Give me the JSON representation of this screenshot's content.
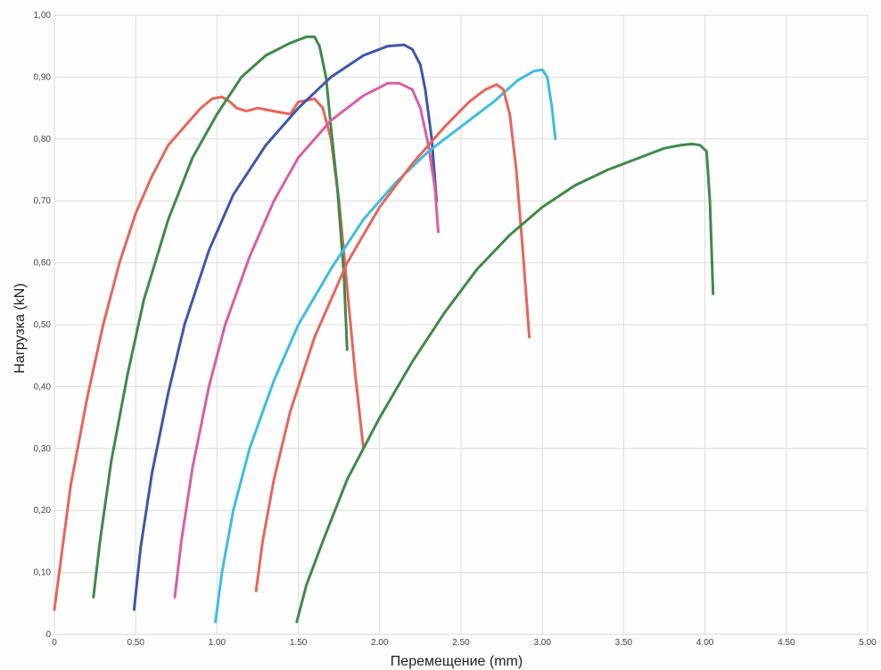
{
  "chart_data": {
    "type": "line",
    "title": "",
    "xlabel": "Перемещение (mm)",
    "ylabel": "Нагрузка (kN)",
    "xlim": [
      0,
      5
    ],
    "ylim": [
      0,
      1
    ],
    "grid": true,
    "legend": "none",
    "x_ticks": [
      "0",
      "0.50",
      "1.00",
      "1.50",
      "2.00",
      "2.50",
      "3.00",
      "3.50",
      "4.00",
      "4.50",
      "5.00"
    ],
    "y_ticks": [
      "0",
      "0,10",
      "0,20",
      "0,30",
      "0,40",
      "0,50",
      "0,60",
      "0,70",
      "0,80",
      "0,90",
      "1,00"
    ],
    "series": [
      {
        "color": "#e8655a",
        "x": [
          0.0,
          0.05,
          0.1,
          0.2,
          0.3,
          0.4,
          0.5,
          0.6,
          0.7,
          0.8,
          0.9,
          0.97,
          1.03,
          1.08,
          1.12,
          1.18,
          1.25,
          1.35,
          1.45,
          1.5,
          1.6,
          1.65,
          1.7,
          1.75,
          1.8,
          1.85,
          1.9
        ],
        "y": [
          0.04,
          0.14,
          0.24,
          0.38,
          0.5,
          0.6,
          0.68,
          0.74,
          0.79,
          0.82,
          0.85,
          0.865,
          0.868,
          0.86,
          0.85,
          0.845,
          0.85,
          0.845,
          0.84,
          0.86,
          0.865,
          0.85,
          0.8,
          0.7,
          0.56,
          0.42,
          0.3
        ]
      },
      {
        "color": "#3e8a4a",
        "x": [
          0.24,
          0.28,
          0.35,
          0.45,
          0.55,
          0.7,
          0.85,
          1.0,
          1.15,
          1.3,
          1.45,
          1.55,
          1.6,
          1.63,
          1.67,
          1.7,
          1.74,
          1.78,
          1.8
        ],
        "y": [
          0.06,
          0.15,
          0.28,
          0.42,
          0.54,
          0.67,
          0.77,
          0.84,
          0.9,
          0.935,
          0.955,
          0.965,
          0.965,
          0.95,
          0.9,
          0.82,
          0.72,
          0.58,
          0.46
        ]
      },
      {
        "color": "#3f56ad",
        "x": [
          0.49,
          0.53,
          0.6,
          0.7,
          0.8,
          0.95,
          1.1,
          1.3,
          1.5,
          1.7,
          1.9,
          2.05,
          2.15,
          2.2,
          2.25,
          2.28,
          2.32,
          2.35
        ],
        "y": [
          0.04,
          0.14,
          0.26,
          0.39,
          0.5,
          0.62,
          0.71,
          0.79,
          0.85,
          0.9,
          0.935,
          0.95,
          0.952,
          0.945,
          0.92,
          0.88,
          0.8,
          0.7
        ]
      },
      {
        "color": "#d85fa4",
        "x": [
          0.74,
          0.78,
          0.85,
          0.95,
          1.05,
          1.2,
          1.35,
          1.5,
          1.7,
          1.9,
          2.05,
          2.12,
          2.2,
          2.25,
          2.3,
          2.34,
          2.36
        ],
        "y": [
          0.06,
          0.15,
          0.27,
          0.4,
          0.5,
          0.61,
          0.7,
          0.77,
          0.83,
          0.87,
          0.89,
          0.89,
          0.88,
          0.85,
          0.79,
          0.72,
          0.65
        ]
      },
      {
        "color": "#3cbde4",
        "x": [
          0.99,
          1.03,
          1.1,
          1.2,
          1.35,
          1.5,
          1.7,
          1.9,
          2.1,
          2.3,
          2.5,
          2.7,
          2.85,
          2.95,
          3.0,
          3.03,
          3.06,
          3.08
        ],
        "y": [
          0.02,
          0.1,
          0.2,
          0.3,
          0.41,
          0.5,
          0.59,
          0.67,
          0.73,
          0.78,
          0.82,
          0.86,
          0.895,
          0.91,
          0.912,
          0.9,
          0.85,
          0.8
        ]
      },
      {
        "color": "#e8655a",
        "x": [
          1.24,
          1.28,
          1.35,
          1.45,
          1.6,
          1.8,
          2.0,
          2.2,
          2.4,
          2.55,
          2.65,
          2.72,
          2.76,
          2.8,
          2.84,
          2.88,
          2.92
        ],
        "y": [
          0.07,
          0.15,
          0.25,
          0.36,
          0.48,
          0.6,
          0.69,
          0.76,
          0.82,
          0.86,
          0.88,
          0.888,
          0.88,
          0.84,
          0.75,
          0.62,
          0.48
        ]
      },
      {
        "color": "#3e8a4a",
        "x": [
          1.49,
          1.55,
          1.65,
          1.8,
          2.0,
          2.2,
          2.4,
          2.6,
          2.8,
          3.0,
          3.2,
          3.4,
          3.6,
          3.75,
          3.85,
          3.92,
          3.97,
          4.01,
          4.03,
          4.05
        ],
        "y": [
          0.02,
          0.08,
          0.15,
          0.25,
          0.35,
          0.44,
          0.52,
          0.59,
          0.645,
          0.69,
          0.725,
          0.75,
          0.77,
          0.785,
          0.79,
          0.792,
          0.79,
          0.78,
          0.7,
          0.55
        ]
      }
    ]
  }
}
